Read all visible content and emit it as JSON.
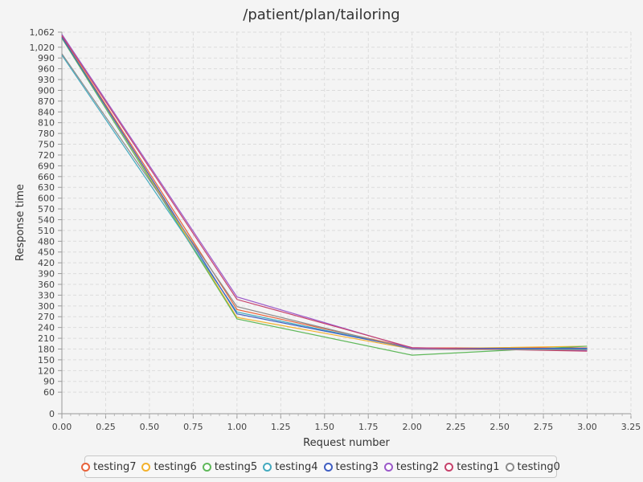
{
  "chart_data": {
    "type": "line",
    "title": "/patient/plan/tailoring",
    "xlabel": "Request number",
    "ylabel": "Response time",
    "xlim": [
      0,
      3.25
    ],
    "ylim": [
      0,
      1062
    ],
    "grid": true,
    "legend_position": "bottom",
    "x_ticks": [
      0,
      0.25,
      0.5,
      0.75,
      1.0,
      1.25,
      1.5,
      1.75,
      2.0,
      2.25,
      2.5,
      2.75,
      3.0,
      3.25
    ],
    "x_tick_labels": [
      "0.00",
      "0.25",
      "0.50",
      "0.75",
      "1.00",
      "1.25",
      "1.50",
      "1.75",
      "2.00",
      "2.25",
      "2.50",
      "2.75",
      "3.00",
      "3.25"
    ],
    "y_ticks": [
      0,
      60,
      90,
      120,
      150,
      180,
      210,
      240,
      270,
      300,
      330,
      360,
      390,
      420,
      450,
      480,
      510,
      540,
      570,
      600,
      630,
      660,
      690,
      720,
      750,
      780,
      810,
      840,
      870,
      900,
      930,
      960,
      990,
      1020,
      1062
    ],
    "y_tick_labels": [
      "0",
      "60",
      "90",
      "120",
      "150",
      "180",
      "210",
      "240",
      "270",
      "300",
      "330",
      "360",
      "390",
      "420",
      "450",
      "480",
      "510",
      "540",
      "570",
      "600",
      "630",
      "660",
      "690",
      "720",
      "750",
      "780",
      "810",
      "840",
      "870",
      "900",
      "930",
      "960",
      "990",
      "1,020",
      "1,062"
    ],
    "x": [
      0,
      1,
      2,
      3
    ],
    "series": [
      {
        "name": "testing7",
        "color": "#e8623a",
        "values": [
          1050,
          290,
          183,
          183
        ]
      },
      {
        "name": "testing6",
        "color": "#f3b12c",
        "values": [
          1052,
          268,
          180,
          188
        ]
      },
      {
        "name": "testing5",
        "color": "#5fb85a",
        "values": [
          1045,
          264,
          163,
          188
        ]
      },
      {
        "name": "testing4",
        "color": "#44aabf",
        "values": [
          998,
          283,
          182,
          180
        ]
      },
      {
        "name": "testing3",
        "color": "#3f5ec2",
        "values": [
          1048,
          278,
          182,
          182
        ]
      },
      {
        "name": "testing2",
        "color": "#9b59c9",
        "values": [
          1056,
          325,
          182,
          176
        ]
      },
      {
        "name": "testing1",
        "color": "#c6426b",
        "values": [
          1052,
          318,
          184,
          174
        ]
      },
      {
        "name": "testing0",
        "color": "#8c8c8c",
        "values": [
          1002,
          298,
          179,
          178
        ]
      }
    ]
  }
}
